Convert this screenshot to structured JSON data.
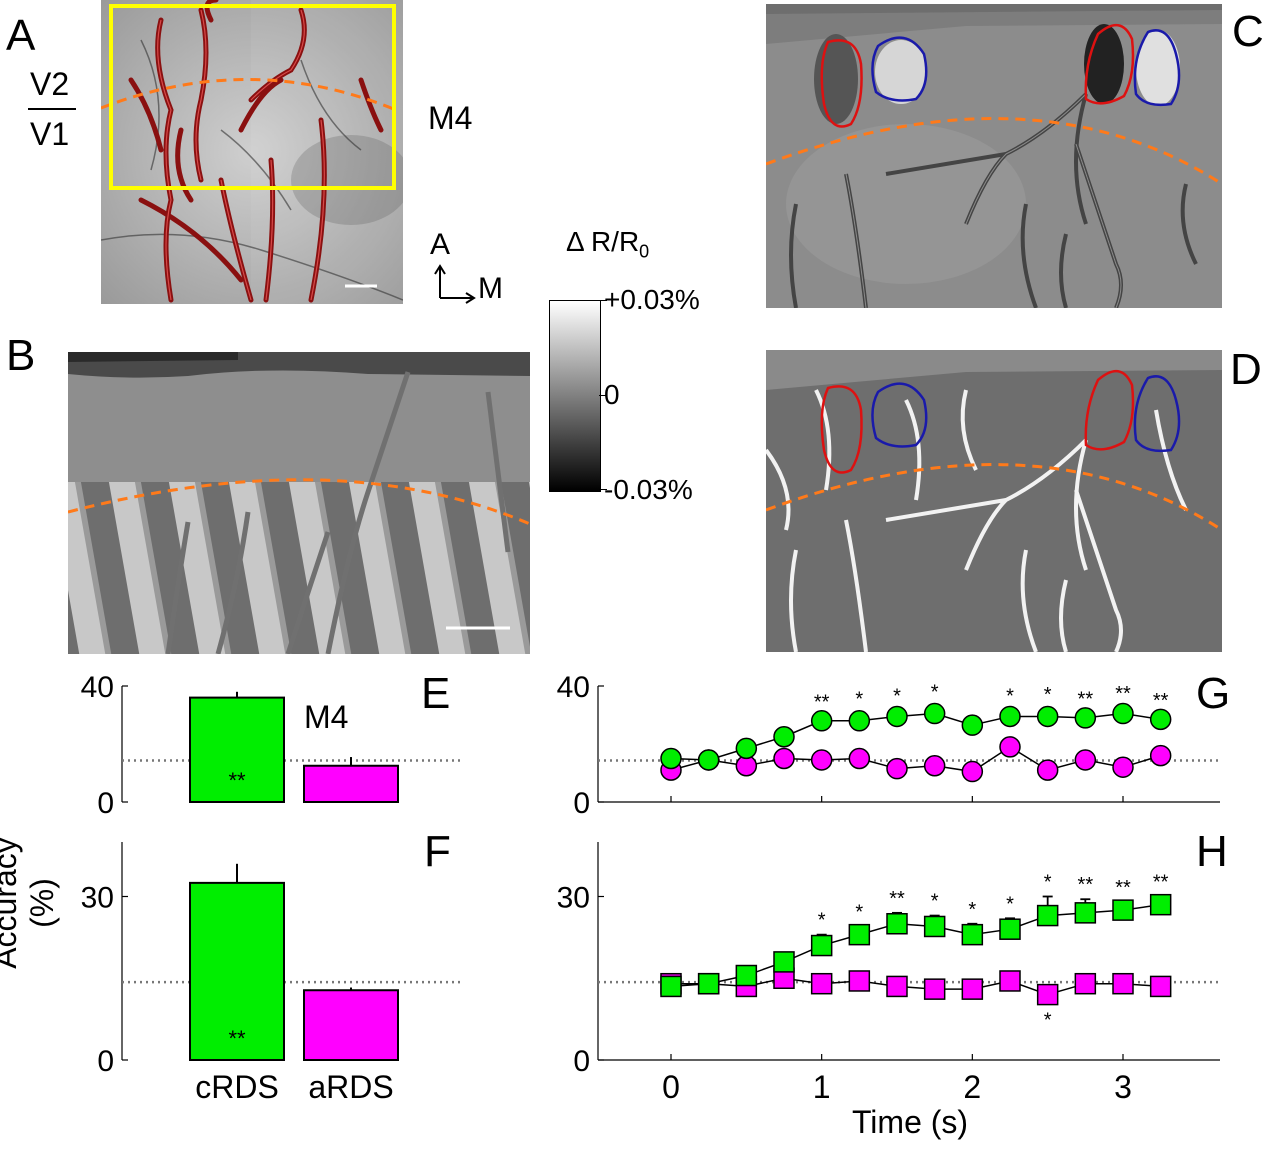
{
  "panel_labels": {
    "A": "A",
    "B": "B",
    "C": "C",
    "D": "D",
    "E": "E",
    "F": "F",
    "G": "G",
    "H": "H"
  },
  "panel_a": {
    "v2": "V2",
    "v1": "V1",
    "monkey": "M4",
    "axis_a": "A",
    "axis_m": "M"
  },
  "colorbar": {
    "title": "Δ R/R",
    "title_sub": "0",
    "top": "+0.03%",
    "mid": "0",
    "bottom": "-0.03%"
  },
  "colors": {
    "crds": "#00ee00",
    "ards": "#ff00ff",
    "vessel": "#cc2222",
    "roi_red": "#dd1111",
    "roi_blue": "#1a1aaa",
    "border": "#ff7a1a",
    "box": "#ffff00"
  },
  "ylabel": "Accuracy (%)",
  "xlabel": "Time (s)",
  "bar_categories": [
    "cRDS",
    "aRDS"
  ],
  "chart_data": [
    {
      "panel": "E",
      "type": "bar",
      "annotation": "M4",
      "categories": [
        "cRDS",
        "aRDS"
      ],
      "values": [
        36,
        12.5
      ],
      "errors": [
        2,
        3
      ],
      "sig": [
        "**",
        ""
      ],
      "ylim": [
        0,
        40
      ],
      "yticks": [
        "0",
        "40"
      ],
      "chance": 14.3
    },
    {
      "panel": "F",
      "type": "bar",
      "categories": [
        "cRDS",
        "aRDS"
      ],
      "values": [
        32.5,
        12.8
      ],
      "errors": [
        3.5,
        0.5
      ],
      "sig": [
        "**",
        ""
      ],
      "ylim": [
        0,
        40
      ],
      "yticks": [
        "0",
        "30"
      ],
      "chance": 14.3
    },
    {
      "panel": "G",
      "type": "line",
      "x": [
        0,
        0.25,
        0.5,
        0.75,
        1,
        1.25,
        1.5,
        1.75,
        2,
        2.25,
        2.5,
        2.75,
        3,
        3.25
      ],
      "xticks": [
        "0",
        "1",
        "2",
        "3"
      ],
      "ylim": [
        0,
        40
      ],
      "yticks": [
        "0",
        "40"
      ],
      "chance": 14.3,
      "series": [
        {
          "key": "crds",
          "values": [
            15,
            14.5,
            18.5,
            22.5,
            28,
            28,
            29.5,
            30.5,
            26.5,
            29.5,
            29.5,
            29,
            30.5,
            28.5
          ],
          "errors": [
            0,
            0,
            0,
            2,
            1.5,
            2.5,
            2,
            2.5,
            2,
            2,
            2.5,
            1.5,
            2,
            1.5
          ],
          "sig": [
            "",
            "",
            "",
            "",
            "**",
            "*",
            "*",
            "*",
            "",
            "*",
            "*",
            "**",
            "**",
            "**"
          ]
        },
        {
          "key": "ards",
          "values": [
            11,
            14.5,
            12.5,
            15,
            14.5,
            15,
            11.5,
            12.5,
            10.5,
            19,
            11,
            14.5,
            12,
            16
          ],
          "errors": [
            0,
            0,
            0,
            0,
            0,
            0,
            0,
            0,
            0,
            0,
            0,
            0,
            0,
            0
          ],
          "sig": [
            "",
            "",
            "",
            "",
            "",
            "",
            "",
            "",
            "",
            "",
            "",
            "",
            "",
            ""
          ]
        }
      ]
    },
    {
      "panel": "H",
      "type": "line",
      "x": [
        0,
        0.25,
        0.5,
        0.75,
        1,
        1.25,
        1.5,
        1.75,
        2,
        2.25,
        2.5,
        2.75,
        3,
        3.25
      ],
      "xticks": [
        "0",
        "1",
        "2",
        "3"
      ],
      "ylim": [
        0,
        40
      ],
      "yticks": [
        "0",
        "30"
      ],
      "chance": 14.3,
      "series": [
        {
          "key": "crds",
          "values": [
            13.5,
            14,
            15.5,
            18,
            21,
            23,
            25,
            24.5,
            23,
            24,
            26.5,
            27,
            27.5,
            28.5
          ],
          "errors": [
            1,
            0.5,
            0.5,
            1,
            2,
            1.5,
            2,
            2,
            2,
            2,
            3.5,
            2.5,
            1.5,
            1.5
          ],
          "sig": [
            "",
            "",
            "",
            "",
            "*",
            "*",
            "**",
            "*",
            "*",
            "*",
            "*",
            "**",
            "**",
            "**"
          ]
        },
        {
          "key": "ards",
          "values": [
            14,
            14,
            13.5,
            15,
            14,
            14.5,
            13.5,
            13,
            13,
            14.5,
            12,
            14,
            14,
            13.5
          ],
          "errors": [
            0,
            0,
            0,
            0,
            0,
            0,
            0,
            0,
            0,
            0,
            0,
            0,
            0,
            0
          ],
          "sig": [
            "",
            "",
            "",
            "",
            "",
            "",
            "",
            "",
            "",
            "",
            "*",
            "",
            "",
            ""
          ]
        }
      ]
    }
  ]
}
